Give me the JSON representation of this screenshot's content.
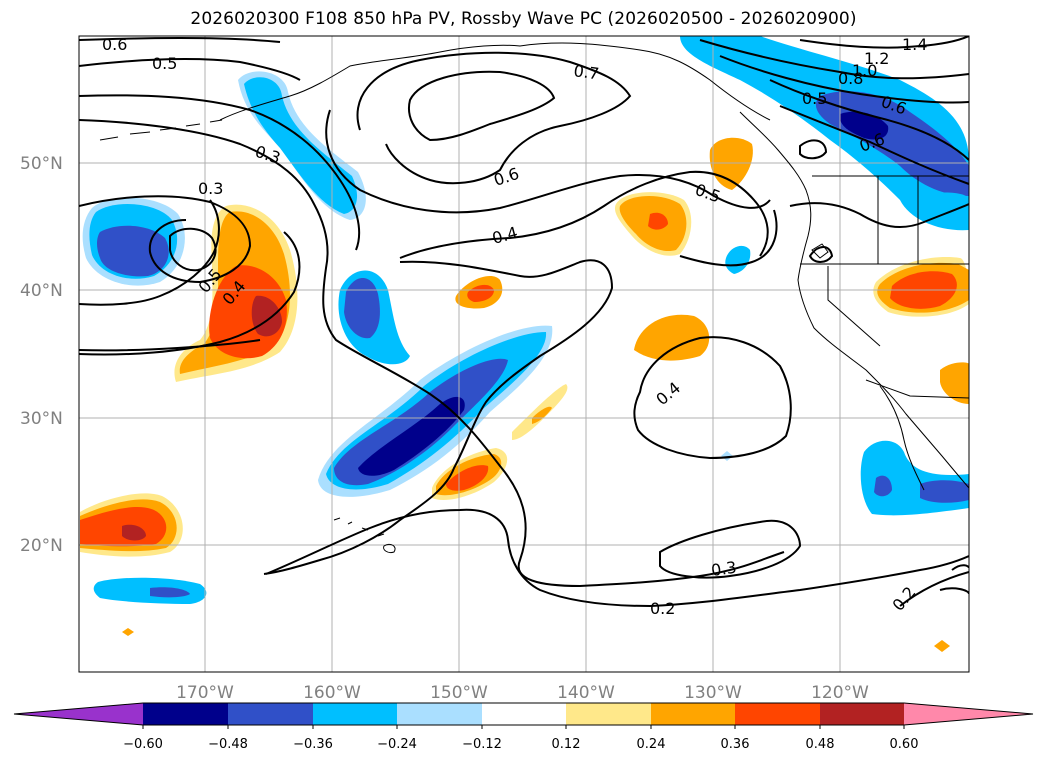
{
  "title": "2026020300 F108 850 hPa PV, Rossby Wave PC (2026020500 - 2026020900)",
  "map": {
    "lat_labels": [
      "50°N",
      "40°N",
      "30°N",
      "20°N"
    ],
    "lon_labels": [
      "170°W",
      "160°W",
      "150°W",
      "140°W",
      "130°W",
      "120°W"
    ],
    "gridlines": true,
    "gridline_color": "#b0b0b0",
    "coastline_color": "#000000"
  },
  "contour_labels": [
    {
      "text": "0.6",
      "key": "c1"
    },
    {
      "text": "0.5",
      "key": "c2"
    },
    {
      "text": "0.7",
      "key": "c3"
    },
    {
      "text": "1.2",
      "key": "c4"
    },
    {
      "text": "1.4",
      "key": "c5"
    },
    {
      "text": "1.0",
      "key": "c6"
    },
    {
      "text": "0.8",
      "key": "c7"
    },
    {
      "text": "0.6",
      "key": "c8"
    },
    {
      "text": "0.5",
      "key": "c9"
    },
    {
      "text": "0.3",
      "key": "c10"
    },
    {
      "text": "0.3",
      "key": "c11"
    },
    {
      "text": "0.6",
      "key": "c12"
    },
    {
      "text": "0.5",
      "key": "c13"
    },
    {
      "text": "0.4",
      "key": "c14"
    },
    {
      "text": "0.5",
      "key": "c15"
    },
    {
      "text": "0.4",
      "key": "c16"
    },
    {
      "text": "0.4",
      "key": "c17"
    },
    {
      "text": "0.3",
      "key": "c18"
    },
    {
      "text": "0.2",
      "key": "c19"
    },
    {
      "text": "0.2",
      "key": "c20"
    },
    {
      "text": "0.6",
      "key": "c21"
    }
  ],
  "colorbar": {
    "ticks": [
      "−0.60",
      "−0.48",
      "−0.36",
      "−0.24",
      "−0.12",
      "0.12",
      "0.24",
      "0.36",
      "0.48",
      "0.60"
    ],
    "colors": {
      "under": "#9932cc",
      "lt_m060": "#00008b",
      "m060_m048": "#3050c8",
      "m048_m036": "#1e64dc",
      "m036_m024": "#00bfff",
      "m024_m012": "#aadfff",
      "m012_p012": "#ffffff",
      "p012_p024": "#ffe88a",
      "p024_p036": "#ffa500",
      "p036_p048": "#ff4500",
      "p048_p060": "#b22222",
      "over": "#ff88aa"
    }
  }
}
